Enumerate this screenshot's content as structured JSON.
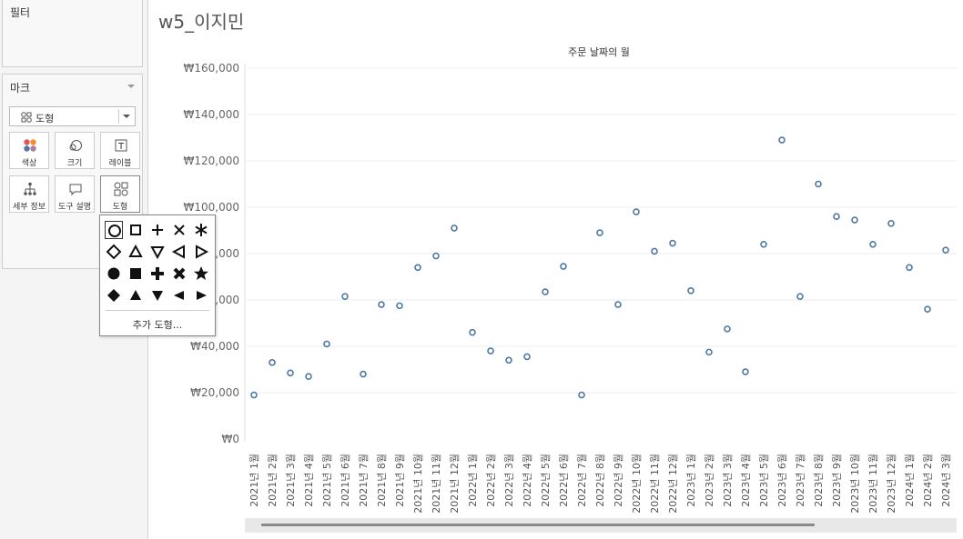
{
  "sidebar": {
    "filters_title": "필터",
    "marks_title": "마크",
    "mark_type": "도형",
    "buttons": {
      "color": "색상",
      "size": "크기",
      "label": "레이블",
      "detail": "세부 정보",
      "tooltip": "도구 설명",
      "shape": "도형"
    }
  },
  "shape_palette": {
    "more_shapes": "추가 도형...",
    "shapes": [
      "circle-open",
      "square-open",
      "plus",
      "times",
      "asterisk",
      "diamond-open",
      "triangle-up-open",
      "triangle-down-open",
      "triangle-left-open",
      "triangle-right-open",
      "circle-filled",
      "square-filled",
      "plus-bold",
      "times-bold",
      "star",
      "diamond-filled",
      "triangle-up-filled",
      "triangle-down-filled",
      "triangle-left-filled",
      "triangle-right-filled"
    ],
    "selected": "circle-open"
  },
  "sheet": {
    "title": "w5_이지민"
  },
  "colors": {
    "mark": "#4e79a7",
    "gridline": "#ececec",
    "scrollbar": "#8a8a8a"
  },
  "chart_data": {
    "type": "scatter",
    "xlabel": "주문 날짜의 월",
    "ylabel": "",
    "ylim": [
      0,
      160000
    ],
    "yticks": [
      "₩160,000",
      "₩140,000",
      "₩120,000",
      "₩100,000",
      "₩80,000",
      "₩60,000",
      "₩40,000",
      "₩20,000",
      "₩0"
    ],
    "ytick_values": [
      160000,
      140000,
      120000,
      100000,
      80000,
      60000,
      40000,
      20000,
      0
    ],
    "categories": [
      "2021년 1월",
      "2021년 2월",
      "2021년 3월",
      "2021년 4월",
      "2021년 5월",
      "2021년 6월",
      "2021년 7월",
      "2021년 8월",
      "2021년 9월",
      "2021년 10월",
      "2021년 11월",
      "2021년 12월",
      "2022년 1월",
      "2022년 2월",
      "2022년 3월",
      "2022년 4월",
      "2022년 5월",
      "2022년 6월",
      "2022년 7월",
      "2022년 8월",
      "2022년 9월",
      "2022년 10월",
      "2022년 11월",
      "2022년 12월",
      "2023년 1월",
      "2023년 2월",
      "2023년 3월",
      "2023년 4월",
      "2023년 5월",
      "2023년 6월",
      "2023년 7월",
      "2023년 8월",
      "2023년 9월",
      "2023년 10월",
      "2023년 11월",
      "2023년 12월",
      "2024년 1월",
      "2024년 2월",
      "2024년 3월"
    ],
    "values": [
      19000,
      33000,
      28500,
      27000,
      41000,
      61500,
      28000,
      58000,
      57500,
      74000,
      79000,
      91000,
      46000,
      38000,
      34000,
      35500,
      63500,
      74500,
      19000,
      89000,
      58000,
      98000,
      81000,
      84500,
      64000,
      37500,
      47500,
      29000,
      84000,
      129000,
      61500,
      110000,
      96000,
      94500,
      84000,
      93000,
      74000,
      56000,
      81500
    ],
    "grid": true
  }
}
